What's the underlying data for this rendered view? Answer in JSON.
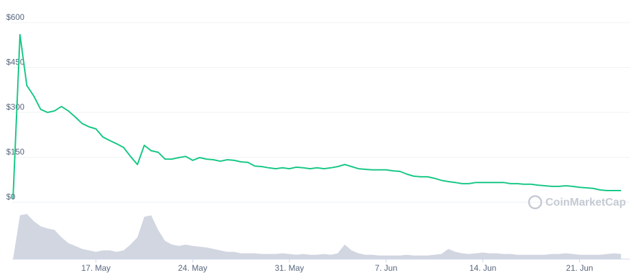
{
  "chart_data": {
    "type": "line",
    "categories": [
      null,
      null,
      null,
      null,
      null,
      null,
      null,
      null,
      null,
      null,
      null,
      null,
      "17. May",
      null,
      null,
      null,
      null,
      null,
      null,
      null,
      null,
      null,
      null,
      null,
      null,
      null,
      "24. May",
      null,
      null,
      null,
      null,
      null,
      null,
      null,
      null,
      null,
      null,
      null,
      null,
      null,
      "31. May",
      null,
      null,
      null,
      null,
      null,
      null,
      null,
      null,
      null,
      null,
      null,
      null,
      null,
      "7. Jun",
      null,
      null,
      null,
      null,
      null,
      null,
      null,
      null,
      null,
      null,
      null,
      null,
      null,
      "14. Jun",
      null,
      null,
      null,
      null,
      null,
      null,
      null,
      null,
      null,
      null,
      null,
      null,
      null,
      "21. Jun",
      null,
      null,
      null,
      null,
      null,
      null
    ],
    "series": [
      {
        "color": "#16c784",
        "values": [
          12,
          560,
          390,
          355,
          310,
          300,
          305,
          320,
          305,
          285,
          263,
          252,
          245,
          218,
          206,
          195,
          183,
          153,
          126,
          190,
          172,
          167,
          144,
          144,
          149,
          153,
          140,
          149,
          144,
          142,
          137,
          142,
          140,
          135,
          133,
          121,
          119,
          115,
          112,
          115,
          112,
          117,
          115,
          112,
          115,
          112,
          115,
          119,
          126,
          119,
          112,
          110,
          108,
          108,
          108,
          105,
          103,
          94,
          87,
          85,
          85,
          80,
          73,
          69,
          66,
          62,
          62,
          66,
          66,
          66,
          66,
          66,
          62,
          62,
          60,
          60,
          57,
          55,
          53,
          53,
          55,
          53,
          50,
          48,
          46,
          41,
          39,
          39,
          39
        ]
      },
      {
        "type": "area",
        "color": "#d1d6e1",
        "values": [
          0,
          60,
          62,
          52,
          45,
          42,
          40,
          30,
          22,
          18,
          14,
          12,
          10,
          12,
          12,
          10,
          12,
          20,
          30,
          58,
          60,
          40,
          25,
          20,
          18,
          20,
          18,
          17,
          16,
          14,
          12,
          10,
          10,
          8,
          8,
          8,
          7,
          7,
          7,
          8,
          7,
          6,
          7,
          6,
          6,
          7,
          6,
          8,
          20,
          12,
          8,
          6,
          6,
          5,
          5,
          5,
          5,
          6,
          5,
          5,
          5,
          6,
          7,
          14,
          10,
          8,
          7,
          8,
          9,
          8,
          8,
          7,
          7,
          6,
          6,
          6,
          6,
          6,
          7,
          7,
          8,
          7,
          6,
          6,
          6,
          6,
          7,
          8,
          7
        ]
      }
    ],
    "ylim": [
      0,
      600
    ],
    "yticks": [
      {
        "value": 0,
        "label": "$0"
      },
      {
        "value": 150,
        "label": "$150"
      },
      {
        "value": 300,
        "label": "$300"
      },
      {
        "value": 450,
        "label": "$450"
      },
      {
        "value": 600,
        "label": "$600"
      }
    ],
    "grid": true,
    "watermark": "CoinMarketCap"
  }
}
